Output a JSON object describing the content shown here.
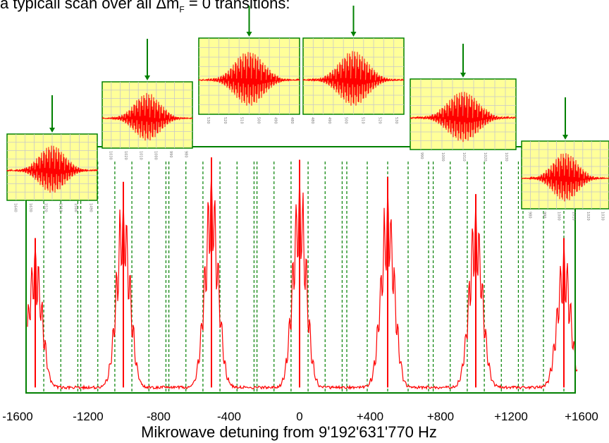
{
  "caption": "a typicall scan over all Δmₙ = 0 transitions:",
  "caption_main": "a typicall scan over all ",
  "caption_delta": "Δm",
  "caption_sub": "F",
  "caption_tail": " = 0 transitions:",
  "colors": {
    "trace": "#ff0000",
    "frame": "#008000",
    "inset_bg": "#ffff99",
    "inset_grid": "#c8c8c8",
    "arrow": "#008000"
  },
  "chart_data": {
    "type": "line",
    "title": "",
    "xlabel": "Mikrowave detuning from 9'192'631'770 Hz",
    "ylabel": "",
    "xlim": [
      -1950,
      1950
    ],
    "ylim": [
      0,
      1
    ],
    "grid": false,
    "x_ticks": [
      -1600,
      -1200,
      -800,
      -400,
      0,
      400,
      800,
      1200,
      1600
    ],
    "x_tick_labels": [
      "-1600",
      "-1200",
      "-800",
      "-400",
      "0",
      "+400",
      "+800",
      "+1200",
      "+1600"
    ],
    "series": [
      {
        "peaks": [
          {
            "center": -1500,
            "height": 0.63
          },
          {
            "center": -1000,
            "height": 0.86
          },
          {
            "center": -500,
            "height": 0.96
          },
          {
            "center": 0,
            "height": 0.95
          },
          {
            "center": 500,
            "height": 0.88
          },
          {
            "center": 1000,
            "height": 0.81
          },
          {
            "center": 1500,
            "height": 0.63
          }
        ],
        "baseline": 0.02
      }
    ],
    "zoom_windows": [
      {
        "range": [
          -1790,
          -1210
        ],
        "tick_labels": [
          "1640",
          "1630",
          "1520",
          "1510",
          "1500",
          "1490"
        ]
      },
      {
        "range": [
          -1290,
          -710
        ],
        "tick_labels": [
          "1030",
          "1020",
          "1010",
          "1000",
          "990",
          "980"
        ]
      },
      {
        "range": [
          -790,
          -210
        ],
        "tick_labels": [
          "530",
          "520",
          "510",
          "500",
          "490",
          "480"
        ]
      },
      {
        "range": [
          -290,
          290
        ],
        "tick_labels": [
          "480",
          "490",
          "500",
          "510",
          "520",
          "530"
        ]
      },
      {
        "range": [
          210,
          790
        ],
        "tick_labels": [
          "990",
          "1000",
          "1010",
          "1020",
          "1030"
        ]
      },
      {
        "range": [
          710,
          1290
        ],
        "tick_labels": [
          "980",
          "990",
          "1000",
          "1010",
          "1020",
          "1030"
        ]
      },
      {
        "range": [
          1210,
          1790
        ],
        "tick_labels": [
          "1490",
          "1500",
          "1510",
          "1520",
          "1530"
        ]
      }
    ]
  }
}
